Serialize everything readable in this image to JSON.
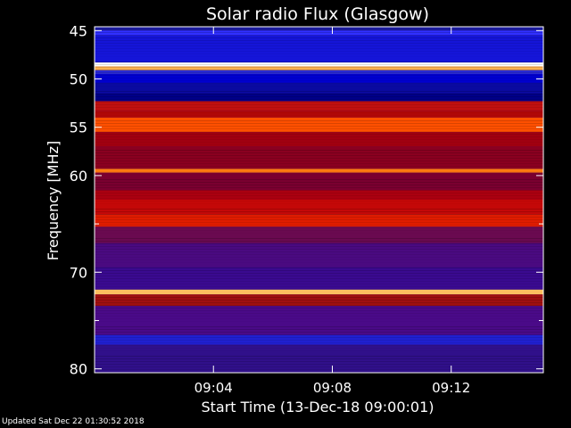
{
  "chart_data": {
    "type": "heatmap",
    "title": "Solar radio Flux (Glasgow)",
    "xlabel": "Start Time (13-Dec-18 09:00:01)",
    "ylabel": "Frequency [MHz]",
    "ylim": [
      44.6,
      80.4
    ],
    "xlim_minutes": [
      0,
      15.1
    ],
    "y_ticks": [
      {
        "value": 45,
        "label": "45"
      },
      {
        "value": 50,
        "label": "50"
      },
      {
        "value": 55,
        "label": "55"
      },
      {
        "value": 60,
        "label": "60"
      },
      {
        "value": 70,
        "label": "70"
      },
      {
        "value": 80,
        "label": "80"
      }
    ],
    "y_minor_ticks": [
      65,
      75
    ],
    "x_ticks": [
      {
        "value": 4,
        "label": "09:04"
      },
      {
        "value": 8,
        "label": "09:08"
      },
      {
        "value": 12,
        "label": "09:12"
      }
    ],
    "frequency_bands": [
      {
        "from": 44.6,
        "to": 45.0,
        "color": "#1a1a9a"
      },
      {
        "from": 45.0,
        "to": 45.5,
        "color": "#3030ff"
      },
      {
        "from": 45.5,
        "to": 48.3,
        "color": "#1515d8"
      },
      {
        "from": 48.3,
        "to": 48.7,
        "color": "#ffffff"
      },
      {
        "from": 48.7,
        "to": 49.1,
        "color": "#ffb050"
      },
      {
        "from": 49.1,
        "to": 49.5,
        "color": "#2a2ad0"
      },
      {
        "from": 49.5,
        "to": 50.4,
        "color": "#0000d0"
      },
      {
        "from": 50.4,
        "to": 51.5,
        "color": "#0a0aa0"
      },
      {
        "from": 51.5,
        "to": 52.3,
        "color": "#000088"
      },
      {
        "from": 52.3,
        "to": 53.3,
        "color": "#c01010"
      },
      {
        "from": 53.3,
        "to": 54.0,
        "color": "#b00808"
      },
      {
        "from": 54.0,
        "to": 55.5,
        "color": "#ff5000"
      },
      {
        "from": 55.5,
        "to": 57.0,
        "color": "#a00010"
      },
      {
        "from": 57.0,
        "to": 59.3,
        "color": "#8a0020"
      },
      {
        "from": 59.3,
        "to": 59.7,
        "color": "#ff7a10"
      },
      {
        "from": 59.7,
        "to": 61.5,
        "color": "#7a0030"
      },
      {
        "from": 61.5,
        "to": 62.5,
        "color": "#aa0010"
      },
      {
        "from": 62.5,
        "to": 64.0,
        "color": "#c40808"
      },
      {
        "from": 64.0,
        "to": 65.3,
        "color": "#e01c00"
      },
      {
        "from": 65.3,
        "to": 67.0,
        "color": "#6a0a50"
      },
      {
        "from": 67.0,
        "to": 69.5,
        "color": "#4a0a80"
      },
      {
        "from": 69.5,
        "to": 71.8,
        "color": "#3a0a90"
      },
      {
        "from": 71.8,
        "to": 72.3,
        "color": "#ffc060"
      },
      {
        "from": 72.3,
        "to": 73.5,
        "color": "#a01010"
      },
      {
        "from": 73.5,
        "to": 76.5,
        "color": "#4a0a88"
      },
      {
        "from": 76.5,
        "to": 77.5,
        "color": "#2020d0"
      },
      {
        "from": 77.5,
        "to": 80.4,
        "color": "#30108a"
      }
    ],
    "colors": {
      "background": "#000000",
      "text": "#ffffff"
    }
  },
  "footer": {
    "updated": "Updated Sat Dec 22 01:30:52 2018"
  }
}
